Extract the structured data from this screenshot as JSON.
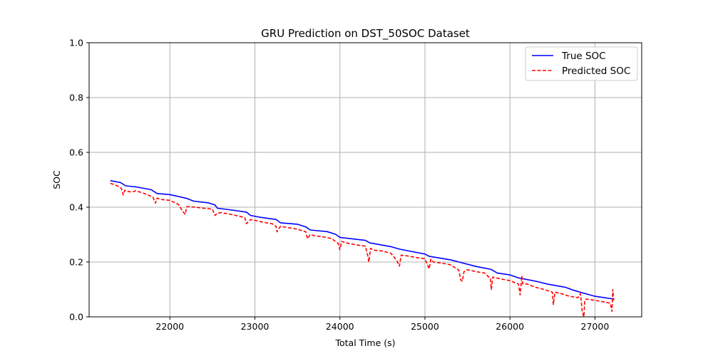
{
  "chart_data": {
    "type": "line",
    "title": "GRU Prediction on DST_50SOC Dataset",
    "xlabel": "Total Time (s)",
    "ylabel": "SOC",
    "xlim": [
      21050,
      27550
    ],
    "ylim": [
      0.0,
      1.0
    ],
    "xticks": [
      22000,
      23000,
      24000,
      25000,
      26000,
      27000
    ],
    "yticks": [
      0.0,
      0.2,
      0.4,
      0.6,
      0.8,
      1.0
    ],
    "grid": true,
    "legend_position": "top-right",
    "series": [
      {
        "name": "True SOC",
        "color": "#0000ff",
        "style": "solid",
        "x": [
          21300,
          21420,
          21480,
          21600,
          21780,
          21850,
          22000,
          22200,
          22280,
          22450,
          22530,
          22560,
          22700,
          22900,
          22950,
          23050,
          23250,
          23300,
          23500,
          23600,
          23650,
          23850,
          23950,
          24000,
          24300,
          24350,
          24600,
          24700,
          24850,
          25000,
          25050,
          25300,
          25400,
          25600,
          25780,
          25850,
          26000,
          26100,
          26300,
          26450,
          26650,
          26750,
          26850,
          27000,
          27220
        ],
        "y": [
          0.497,
          0.49,
          0.478,
          0.474,
          0.464,
          0.45,
          0.446,
          0.432,
          0.422,
          0.416,
          0.408,
          0.396,
          0.391,
          0.382,
          0.37,
          0.364,
          0.355,
          0.343,
          0.338,
          0.328,
          0.317,
          0.311,
          0.301,
          0.29,
          0.279,
          0.27,
          0.256,
          0.247,
          0.238,
          0.229,
          0.221,
          0.208,
          0.2,
          0.184,
          0.173,
          0.16,
          0.153,
          0.142,
          0.13,
          0.119,
          0.108,
          0.097,
          0.088,
          0.075,
          0.065
        ]
      },
      {
        "name": "Predicted SOC",
        "color": "#ff0000",
        "style": "dashed",
        "x": [
          21300,
          21350,
          21400,
          21430,
          21450,
          21470,
          21500,
          21550,
          21600,
          21700,
          21800,
          21830,
          21850,
          21900,
          22000,
          22100,
          22150,
          22180,
          22200,
          22300,
          22400,
          22500,
          22530,
          22560,
          22600,
          22700,
          22800,
          22880,
          22900,
          22950,
          23000,
          23100,
          23200,
          23250,
          23260,
          23300,
          23400,
          23500,
          23600,
          23620,
          23650,
          23700,
          23800,
          23900,
          23980,
          24000,
          24020,
          24100,
          24200,
          24300,
          24330,
          24340,
          24360,
          24400,
          24500,
          24600,
          24670,
          24700,
          24720,
          24800,
          24900,
          25000,
          25050,
          25070,
          25100,
          25200,
          25300,
          25350,
          25400,
          25420,
          25440,
          25460,
          25500,
          25600,
          25700,
          25770,
          25780,
          25800,
          25900,
          26000,
          26100,
          26120,
          26140,
          26150,
          26200,
          26300,
          26400,
          26500,
          26510,
          26530,
          26600,
          26700,
          26800,
          26830,
          26850,
          26870,
          26880,
          26900,
          27000,
          27100,
          27180,
          27200,
          27210,
          27220
        ],
        "y": [
          0.487,
          0.482,
          0.475,
          0.468,
          0.445,
          0.462,
          0.458,
          0.455,
          0.46,
          0.45,
          0.437,
          0.415,
          0.433,
          0.428,
          0.425,
          0.41,
          0.385,
          0.374,
          0.402,
          0.4,
          0.396,
          0.393,
          0.37,
          0.378,
          0.38,
          0.375,
          0.368,
          0.362,
          0.34,
          0.355,
          0.352,
          0.345,
          0.34,
          0.33,
          0.31,
          0.33,
          0.325,
          0.32,
          0.31,
          0.285,
          0.3,
          0.296,
          0.292,
          0.286,
          0.268,
          0.245,
          0.275,
          0.268,
          0.262,
          0.258,
          0.22,
          0.2,
          0.25,
          0.243,
          0.24,
          0.232,
          0.205,
          0.185,
          0.225,
          0.222,
          0.216,
          0.212,
          0.175,
          0.21,
          0.2,
          0.196,
          0.19,
          0.18,
          0.17,
          0.135,
          0.13,
          0.165,
          0.172,
          0.165,
          0.16,
          0.14,
          0.1,
          0.145,
          0.138,
          0.132,
          0.12,
          0.08,
          0.15,
          0.12,
          0.12,
          0.108,
          0.1,
          0.09,
          0.045,
          0.09,
          0.085,
          0.075,
          0.07,
          0.085,
          0.02,
          0.0,
          0.06,
          0.065,
          0.06,
          0.055,
          0.05,
          0.02,
          0.1,
          0.06
        ]
      }
    ]
  }
}
